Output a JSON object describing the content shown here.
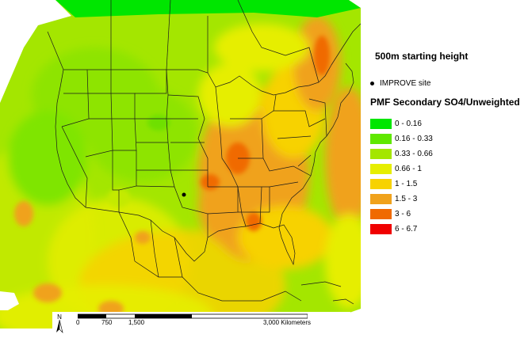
{
  "map": {
    "heading": "500m starting height",
    "site_label": "IMPROVE site",
    "legend_title": "PMF Secondary SO4/Unweighted",
    "north_label": "N"
  },
  "legend": [
    {
      "label": "0 - 0.16",
      "color": "#00e600"
    },
    {
      "label": "0.16 - 0.33",
      "color": "#5fe800"
    },
    {
      "label": "0.33 - 0.66",
      "color": "#a4e600"
    },
    {
      "label": "0.66 - 1",
      "color": "#e6ee00"
    },
    {
      "label": "1 - 1.5",
      "color": "#f7d200"
    },
    {
      "label": "1.5 - 3",
      "color": "#f0a21c"
    },
    {
      "label": "3 - 6",
      "color": "#f06a00"
    },
    {
      "label": "6 - 6.7",
      "color": "#f00000"
    }
  ],
  "scalebar": {
    "ticks": [
      "0",
      "750",
      "1,500",
      "3,000 Kilometers"
    ]
  }
}
